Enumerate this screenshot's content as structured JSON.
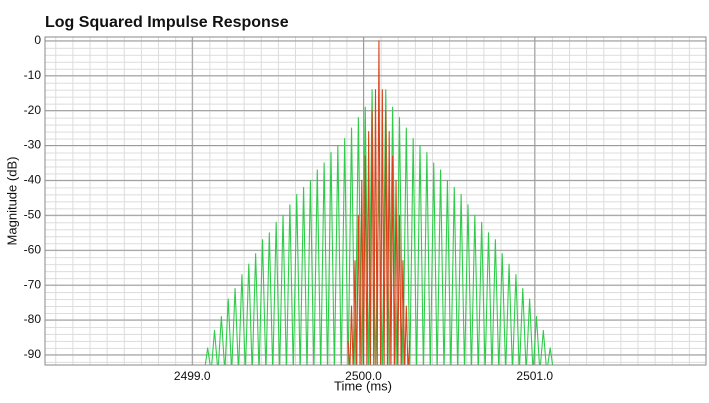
{
  "chart_data": {
    "type": "line",
    "title": "Log Squared Impulse Response",
    "x_label": "Time (ms)",
    "y_label": "Magnitude (dB)",
    "xlim": [
      2498.14,
      2502.0
    ],
    "ylim": [
      -92.9,
      1.1
    ],
    "xticks": [
      {
        "value": 2499.0,
        "label": "2499.0"
      },
      {
        "value": 2500.0,
        "label": "2500.0"
      },
      {
        "value": 2501.0,
        "label": "2501.0"
      }
    ],
    "yticks": [
      0,
      -10,
      -20,
      -30,
      -40,
      -50,
      -60,
      -70,
      -80,
      -90
    ],
    "grid": true,
    "series": [
      {
        "color": "#2fcc4a",
        "x": [
          2499.05,
          2499.07,
          2499.09,
          2499.11,
          2499.13,
          2499.15,
          2499.17,
          2499.19,
          2499.21,
          2499.23,
          2499.25,
          2499.27,
          2499.29,
          2499.31,
          2499.33,
          2499.35,
          2499.37,
          2499.39,
          2499.41,
          2499.43,
          2499.45,
          2499.47,
          2499.49,
          2499.51,
          2499.53,
          2499.55,
          2499.57,
          2499.59,
          2499.61,
          2499.63,
          2499.65,
          2499.67,
          2499.69,
          2499.71,
          2499.73,
          2499.75,
          2499.77,
          2499.79,
          2499.81,
          2499.83,
          2499.85,
          2499.87,
          2499.89,
          2499.91,
          2499.93,
          2499.95,
          2499.97,
          2499.99,
          2500.01,
          2500.03,
          2500.05,
          2500.07,
          2500.09,
          2500.11,
          2500.13,
          2500.15,
          2500.17,
          2500.19,
          2500.21,
          2500.23,
          2500.25,
          2500.27,
          2500.29,
          2500.31,
          2500.33,
          2500.35,
          2500.37,
          2500.39,
          2500.41,
          2500.43,
          2500.45,
          2500.47,
          2500.49,
          2500.51,
          2500.53,
          2500.55,
          2500.57,
          2500.59,
          2500.61,
          2500.63,
          2500.65,
          2500.67,
          2500.69,
          2500.71,
          2500.73,
          2500.75,
          2500.77,
          2500.79,
          2500.81,
          2500.83,
          2500.85,
          2500.87,
          2500.89,
          2500.91,
          2500.93,
          2500.95,
          2500.97,
          2500.99,
          2501.01,
          2501.03,
          2501.05,
          2501.07,
          2501.09,
          2501.11,
          2501.13
        ],
        "values": [
          -93,
          -95,
          -88,
          -95,
          -83,
          -95,
          -79,
          -95,
          -74,
          -95,
          -71,
          -95,
          -67,
          -95,
          -64,
          -95,
          -61,
          -95,
          -57,
          -95,
          -55,
          -95,
          -52,
          -95,
          -50,
          -95,
          -47,
          -95,
          -44,
          -95,
          -42,
          -95,
          -40,
          -95,
          -37,
          -95,
          -35,
          -95,
          -32,
          -95,
          -30,
          -95,
          -28,
          -95,
          -25,
          -95,
          -22,
          -95,
          -19,
          -95,
          -14,
          -95,
          -40,
          -95,
          -14,
          -95,
          -19,
          -95,
          -22,
          -95,
          -25,
          -95,
          -28,
          -95,
          -30,
          -95,
          -32,
          -95,
          -35,
          -95,
          -37,
          -95,
          -40,
          -95,
          -42,
          -95,
          -44,
          -95,
          -47,
          -95,
          -50,
          -95,
          -52,
          -95,
          -55,
          -95,
          -57,
          -95,
          -61,
          -95,
          -64,
          -95,
          -67,
          -95,
          -71,
          -95,
          -74,
          -95,
          -79,
          -95,
          -83,
          -95,
          -88,
          -95,
          -93
        ]
      },
      {
        "color": "#d7441c",
        "x": [
          2499.91,
          2499.92,
          2499.93,
          2499.94,
          2499.95,
          2499.96,
          2499.97,
          2499.98,
          2499.99,
          2500.0,
          2500.01,
          2500.02,
          2500.03,
          2500.04,
          2500.05,
          2500.06,
          2500.07,
          2500.08,
          2500.09,
          2500.1,
          2500.11,
          2500.12,
          2500.13,
          2500.14,
          2500.15,
          2500.16,
          2500.17,
          2500.18,
          2500.19,
          2500.2,
          2500.21,
          2500.22,
          2500.23,
          2500.24,
          2500.25,
          2500.26,
          2500.27
        ],
        "values": [
          -86,
          -95,
          -76,
          -95,
          -63,
          -95,
          -50,
          -95,
          -40,
          -95,
          -33,
          -95,
          -26,
          -95,
          -20,
          -95,
          -14,
          -95,
          0,
          -95,
          -14,
          -95,
          -20,
          -95,
          -26,
          -95,
          -33,
          -95,
          -40,
          -95,
          -50,
          -95,
          -63,
          -95,
          -76,
          -95,
          -86
        ]
      }
    ]
  }
}
